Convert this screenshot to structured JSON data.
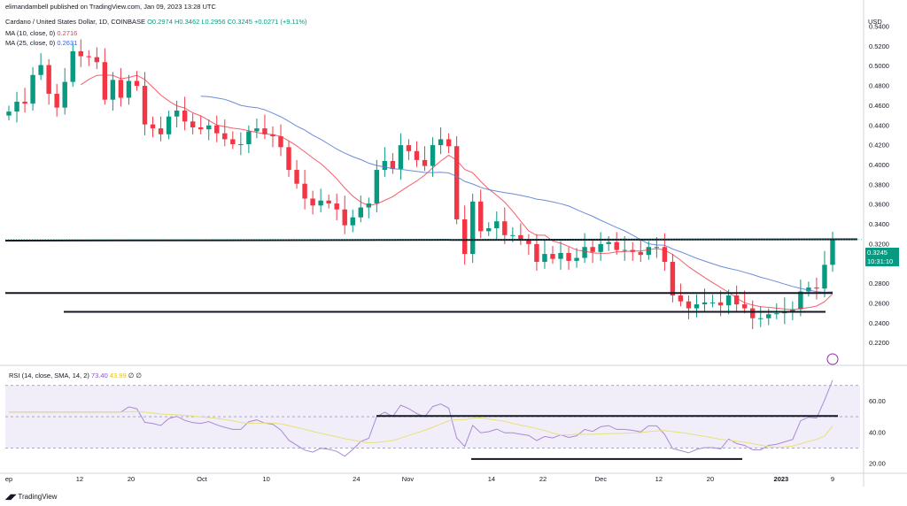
{
  "header": {
    "publisher": "elimandambell published on TradingView.com, Jan 09, 2023 13:28 UTC",
    "symbol": "Cardano / United States Dollar, 1D, COINBASE",
    "ohlc": "O0.2974 H0.3462 L0.2956 C0.3245 +0.0271 (+9.11%)",
    "ma10_label": "MA (10, close, 0)",
    "ma10_value": "0.2716",
    "ma25_label": "MA (25, close, 0)",
    "ma25_value": "0.2631"
  },
  "price_axis": {
    "currency": "USD",
    "last_price": "0.3245",
    "countdown": "10:31:10"
  },
  "rsi_header": {
    "label": "RSI (14, close, SMA, 14, 2)",
    "value": "73.40",
    "sma": "43.99",
    "extra": "∅ ∅"
  },
  "footer": {
    "brand": "TradingView"
  },
  "colors": {
    "up": "#089981",
    "down": "#f23645",
    "ma10": "#f23645",
    "ma25": "#5b7fd6",
    "rsi": "#a98ad6",
    "rsi_ma": "#e6e07a"
  },
  "chart_data": {
    "type": "candlestick",
    "ylim": [
      0.2,
      0.54
    ],
    "price_ticks": [
      "0.2200",
      "0.2400",
      "0.2600",
      "0.2800",
      "0.3000",
      "0.3200",
      "0.3400",
      "0.3600",
      "0.3800",
      "0.4000",
      "0.4200",
      "0.4400",
      "0.4600",
      "0.4800",
      "0.5000",
      "0.5200",
      "0.5400"
    ],
    "x_ticks": [
      "ep",
      "12",
      "20",
      "Oct",
      "10",
      "24",
      "Nov",
      "14",
      "22",
      "Dec",
      "12",
      "20",
      "2023",
      "9"
    ],
    "closes": [
      0.454,
      0.464,
      0.462,
      0.491,
      0.501,
      0.472,
      0.458,
      0.484,
      0.515,
      0.51,
      0.509,
      0.504,
      0.466,
      0.486,
      0.468,
      0.485,
      0.48,
      0.441,
      0.437,
      0.431,
      0.449,
      0.455,
      0.444,
      0.438,
      0.436,
      0.44,
      0.432,
      0.426,
      0.421,
      0.421,
      0.434,
      0.437,
      0.431,
      0.429,
      0.418,
      0.395,
      0.381,
      0.366,
      0.359,
      0.364,
      0.361,
      0.355,
      0.339,
      0.347,
      0.357,
      0.361,
      0.395,
      0.404,
      0.396,
      0.42,
      0.414,
      0.405,
      0.399,
      0.42,
      0.426,
      0.419,
      0.345,
      0.31,
      0.363,
      0.333,
      0.336,
      0.343,
      0.329,
      0.329,
      0.324,
      0.32,
      0.302,
      0.31,
      0.305,
      0.311,
      0.303,
      0.306,
      0.317,
      0.312,
      0.32,
      0.322,
      0.314,
      0.314,
      0.312,
      0.309,
      0.317,
      0.317,
      0.302,
      0.268,
      0.262,
      0.255,
      0.259,
      0.261,
      0.261,
      0.258,
      0.268,
      0.259,
      0.255,
      0.245,
      0.245,
      0.249,
      0.25,
      0.252,
      0.254,
      0.272,
      0.276,
      0.275,
      0.299,
      0.3245
    ],
    "levels": [
      0.3235,
      0.2705,
      0.2515
    ],
    "rsi_ylim": [
      15,
      80
    ],
    "rsi_ticks": [
      "20.00",
      "40.00",
      "60.00"
    ],
    "rsi_bands": [
      30,
      50,
      70
    ],
    "rsi_last": 73.4,
    "rsi_ma_last": 43.99
  }
}
